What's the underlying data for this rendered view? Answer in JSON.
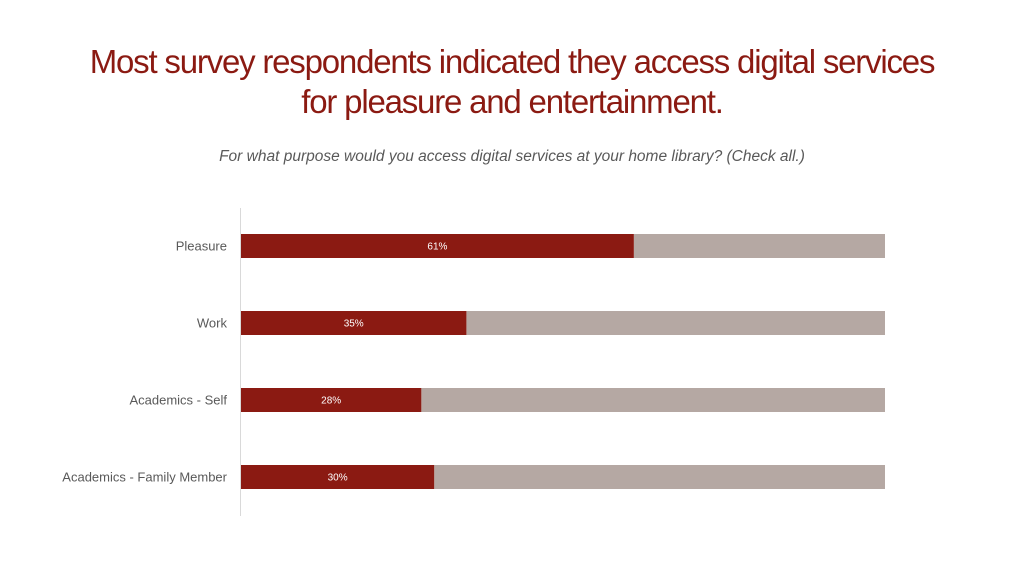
{
  "title_line1": "Most survey respondents indicated they access digital services",
  "title_line2": "for pleasure and entertainment.",
  "subtitle": "For what purpose would you access digital services at your home library? (Check all.)",
  "colors": {
    "accent": "#8b1a12",
    "track": "#b5a8a3",
    "axis": "#d9d9d9",
    "text": "#595959"
  },
  "chart_data": {
    "type": "bar",
    "orientation": "horizontal",
    "stacked_100": true,
    "categories": [
      "Pleasure",
      "Work",
      "Academics - Self",
      "Academics - Family Member"
    ],
    "values": [
      61,
      35,
      28,
      30
    ],
    "value_labels": [
      "61%",
      "35%",
      "28%",
      "30%"
    ],
    "xlim": [
      0,
      100
    ],
    "unit": "%",
    "title": "For what purpose would you access digital services at your home library? (Check all.)",
    "xlabel": "",
    "ylabel": "",
    "grid": false,
    "legend": "none"
  }
}
